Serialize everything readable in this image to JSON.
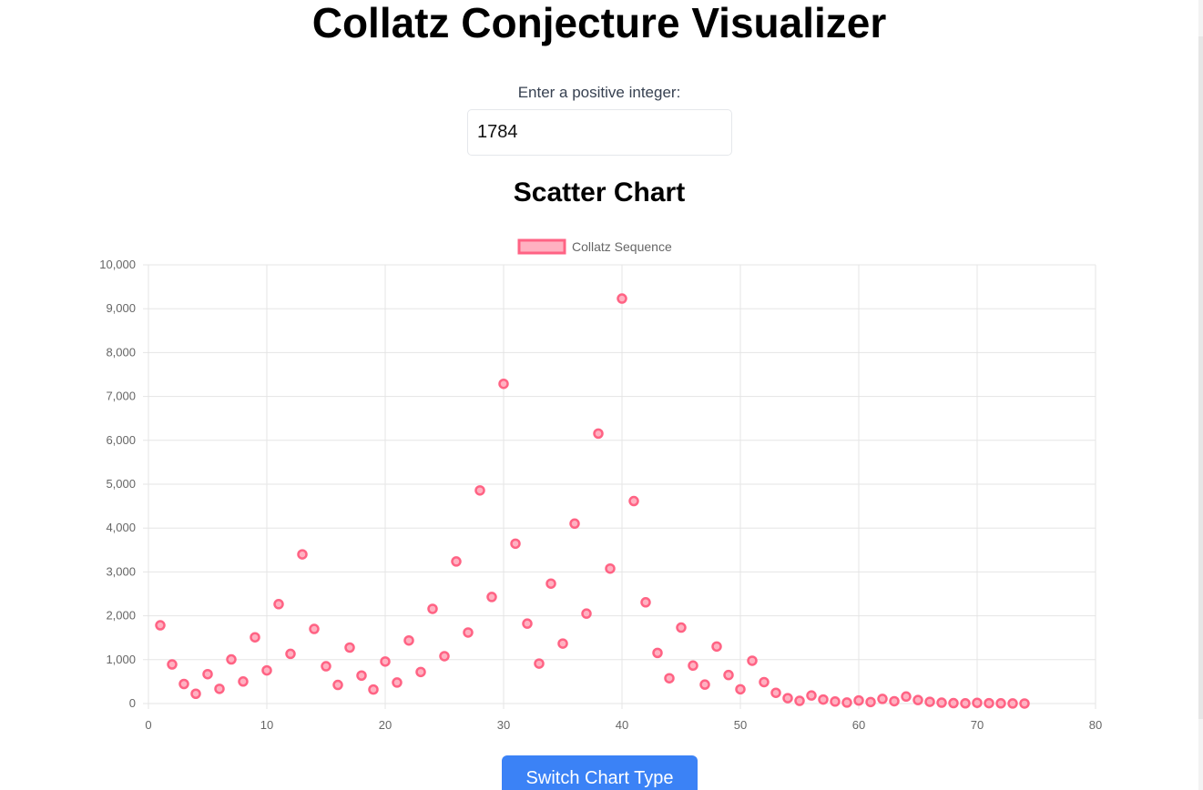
{
  "header": {
    "title": "Collatz Conjecture Visualizer"
  },
  "input": {
    "label": "Enter a positive integer:",
    "value": "1784"
  },
  "chart_heading": "Scatter Chart",
  "switch_button_label": "Switch Chart Type",
  "colors": {
    "point_fill": "#ffb1c1",
    "point_stroke": "#ff6384",
    "grid": "#e5e5e5",
    "tick_text": "#666666",
    "button_bg": "#3b82f6"
  },
  "chart_data": {
    "type": "scatter",
    "legend": {
      "label": "Collatz Sequence",
      "position": "top"
    },
    "xlim": [
      0,
      80
    ],
    "ylim": [
      0,
      10000
    ],
    "x_ticks": [
      "0",
      "10",
      "20",
      "30",
      "40",
      "50",
      "60",
      "70",
      "80"
    ],
    "y_ticks": [
      "0",
      "1,000",
      "2,000",
      "3,000",
      "4,000",
      "5,000",
      "6,000",
      "7,000",
      "8,000",
      "9,000",
      "10,000"
    ],
    "x_tick_values": [
      0,
      10,
      20,
      30,
      40,
      50,
      60,
      70,
      80
    ],
    "y_tick_values": [
      0,
      1000,
      2000,
      3000,
      4000,
      5000,
      6000,
      7000,
      8000,
      9000,
      10000
    ],
    "grid": true,
    "series": [
      {
        "name": "Collatz Sequence",
        "x": [
          1,
          2,
          3,
          4,
          5,
          6,
          7,
          8,
          9,
          10,
          11,
          12,
          13,
          14,
          15,
          16,
          17,
          18,
          19,
          20,
          21,
          22,
          23,
          24,
          25,
          26,
          27,
          28,
          29,
          30,
          31,
          32,
          33,
          34,
          35,
          36,
          37,
          38,
          39,
          40,
          41,
          42,
          43,
          44,
          45,
          46,
          47,
          48,
          49,
          50,
          51,
          52,
          53,
          54,
          55,
          56,
          57,
          58,
          59,
          60,
          61,
          62,
          63,
          64,
          65,
          66,
          67,
          68,
          69,
          70,
          71,
          72,
          73,
          74
        ],
        "y": [
          1784,
          892,
          446,
          223,
          670,
          335,
          1006,
          503,
          1510,
          755,
          2266,
          1133,
          3400,
          1700,
          850,
          425,
          1276,
          638,
          319,
          958,
          479,
          1438,
          719,
          2158,
          1079,
          3238,
          1619,
          4858,
          2429,
          7288,
          3644,
          1822,
          911,
          2734,
          1367,
          4102,
          2051,
          6154,
          3077,
          9232,
          4616,
          2308,
          1154,
          577,
          1732,
          866,
          433,
          1300,
          650,
          325,
          976,
          488,
          244,
          122,
          61,
          184,
          92,
          46,
          23,
          70,
          35,
          106,
          53,
          160,
          80,
          40,
          20,
          10,
          5,
          16,
          8,
          4,
          2,
          1
        ]
      }
    ]
  }
}
